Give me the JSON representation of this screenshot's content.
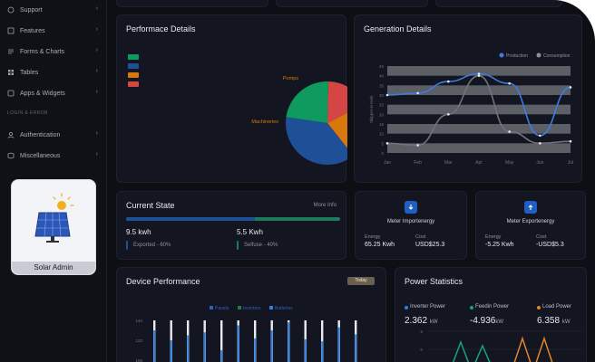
{
  "sidebar": {
    "items": [
      {
        "label": "Support",
        "icon": "support-icon"
      },
      {
        "label": "Features",
        "icon": "features-icon"
      },
      {
        "label": "Forms & Charts",
        "icon": "forms-icon"
      },
      {
        "label": "Tables",
        "icon": "table-icon"
      },
      {
        "label": "Apps & Widgets",
        "icon": "apps-icon"
      },
      {
        "label": "Authentication",
        "icon": "user-icon"
      },
      {
        "label": "Miscellaneous",
        "icon": "misc-icon"
      }
    ],
    "section_login": "LOGIN & ERROR",
    "admin_label": "Solar Admin"
  },
  "performance": {
    "title": "Performace Details",
    "pie_labels": [
      "Pumps",
      "Machineries"
    ],
    "legend_colors": [
      "#0f9b5f",
      "#1f4f96",
      "#d9770f",
      "#d64545"
    ]
  },
  "generation": {
    "title": "Generation Details",
    "legend": [
      "Production",
      "Consumption"
    ],
    "ylabel": "Skipper in Kwh"
  },
  "current_state": {
    "title": "Current State",
    "more_info": "More Info",
    "progress": 0.6,
    "left_value": "9.5 kwh",
    "left_caption": "Exported - 60%",
    "right_value": "5.5 Kwh",
    "right_caption": "Selfuse - 40%"
  },
  "meter_import": {
    "title": "Meter Importenergy",
    "energy_label": "Energy",
    "energy_value": "65.25 Kwh",
    "cost_label": "Cost",
    "cost_value": "USD$25.3",
    "icon": "arrow-down-icon"
  },
  "meter_export": {
    "title": "Meter Exportenergy",
    "energy_label": "Energy",
    "energy_value": "-5.25 Kwh",
    "cost_label": "Cost",
    "cost_value": "-USD$5.3",
    "icon": "arrow-up-icon"
  },
  "device_perf": {
    "title": "Device Performance",
    "dropdown": "Today",
    "legend": [
      "Panels",
      "Invertors",
      "Batteries"
    ]
  },
  "power_stats": {
    "title": "Power Statistics",
    "items": [
      {
        "label": "Inverter Power",
        "value": "2.362",
        "unit": "kW",
        "color": "#2f7fe0"
      },
      {
        "label": "Feedin Power",
        "value": "-4.936",
        "unit": "kW",
        "color": "#16a37a"
      },
      {
        "label": "Load Power",
        "value": "6.358",
        "unit": "kW",
        "color": "#e0862a"
      }
    ]
  },
  "chart_data": [
    {
      "type": "pie",
      "title": "Performace Details",
      "categories": [
        "Pumps",
        "Machineries",
        "",
        ""
      ],
      "values": [
        17,
        22,
        38,
        23
      ],
      "colors": [
        "#d64545",
        "#d9770f",
        "#1f4f96",
        "#0f9b5f"
      ]
    },
    {
      "type": "line",
      "title": "Generation Details",
      "categories": [
        "Jan",
        "Feb",
        "Mar",
        "Apr",
        "May",
        "Jun",
        "Jul"
      ],
      "ylabel": "Skipper in Kwh",
      "ylim": [
        0,
        45
      ],
      "y_ticks": [
        0,
        5,
        10,
        15,
        20,
        25,
        30,
        35,
        40,
        45
      ],
      "series": [
        {
          "name": "Production",
          "values": [
            30,
            31,
            37,
            41,
            36,
            9,
            34
          ],
          "color": "#3f7be0"
        },
        {
          "name": "Consumption",
          "values": [
            5,
            4,
            20,
            40,
            11,
            5,
            6
          ],
          "color": "#6f737c"
        }
      ]
    },
    {
      "type": "bar",
      "title": "Device Performance",
      "y_ticks": [
        100,
        120,
        140
      ],
      "series": [
        {
          "name": "Panels",
          "values": [
            140,
            140,
            140,
            140,
            140,
            140,
            140,
            140,
            140,
            140,
            140,
            140,
            140
          ]
        },
        {
          "name": "Invertors",
          "values": [
            0,
            0,
            0,
            0,
            0,
            0,
            0,
            0,
            0,
            0,
            0,
            0,
            0
          ]
        },
        {
          "name": "Batteries",
          "values": [
            130,
            120,
            125,
            128,
            110,
            135,
            122,
            130,
            138,
            121,
            119,
            133,
            126
          ]
        }
      ]
    },
    {
      "type": "line",
      "title": "Power Statistics",
      "y_ticks": [
        5,
        0,
        -5
      ],
      "series": [
        {
          "name": "Feedin Power",
          "values": [
            -6,
            2,
            -6,
            1,
            -6
          ]
        },
        {
          "name": "Load Power",
          "values": [
            -6,
            3,
            -6,
            3,
            -6
          ]
        }
      ]
    }
  ]
}
